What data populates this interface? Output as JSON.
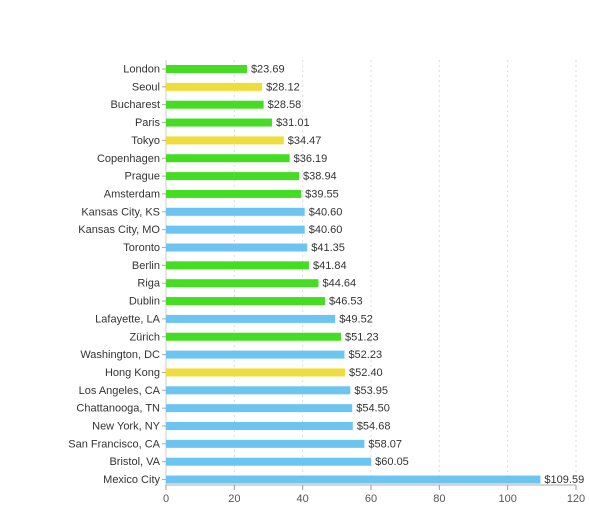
{
  "chart_data": {
    "type": "bar",
    "orientation": "horizontal",
    "title": "",
    "xlabel": "",
    "ylabel": "",
    "xlim": [
      0,
      120
    ],
    "x_ticks": [
      0,
      20,
      40,
      60,
      80,
      100,
      120
    ],
    "grid": "vertical dashed",
    "legend": "none",
    "value_prefix": "$",
    "colors": {
      "green": "#44dd22",
      "yellow": "#f0dc3c",
      "blue": "#6cc4f0"
    },
    "categories": [
      "London",
      "Seoul",
      "Bucharest",
      "Paris",
      "Tokyo",
      "Copenhagen",
      "Prague",
      "Amsterdam",
      "Kansas City, KS",
      "Kansas City, MO",
      "Toronto",
      "Berlin",
      "Riga",
      "Dublin",
      "Lafayette, LA",
      "Zürich",
      "Washington, DC",
      "Hong Kong",
      "Los Angeles, CA",
      "Chattanooga, TN",
      "New York, NY",
      "San Francisco, CA",
      "Bristol, VA",
      "Mexico City"
    ],
    "values": [
      23.69,
      28.12,
      28.58,
      31.01,
      34.47,
      36.19,
      38.94,
      39.55,
      40.6,
      40.6,
      41.35,
      41.84,
      44.64,
      46.53,
      49.52,
      51.23,
      52.23,
      52.4,
      53.95,
      54.5,
      54.68,
      58.07,
      60.05,
      109.59
    ],
    "value_labels": [
      "$23.69",
      "$28.12",
      "$28.58",
      "$31.01",
      "$34.47",
      "$36.19",
      "$38.94",
      "$39.55",
      "$40.60",
      "$40.60",
      "$41.35",
      "$41.84",
      "$44.64",
      "$46.53",
      "$49.52",
      "$51.23",
      "$52.23",
      "$52.40",
      "$53.95",
      "$54.50",
      "$54.68",
      "$58.07",
      "$60.05",
      "$109.59"
    ],
    "bar_colors": [
      "green",
      "yellow",
      "green",
      "green",
      "yellow",
      "green",
      "green",
      "green",
      "blue",
      "blue",
      "blue",
      "green",
      "green",
      "green",
      "blue",
      "green",
      "blue",
      "yellow",
      "blue",
      "blue",
      "blue",
      "blue",
      "blue",
      "blue"
    ]
  }
}
